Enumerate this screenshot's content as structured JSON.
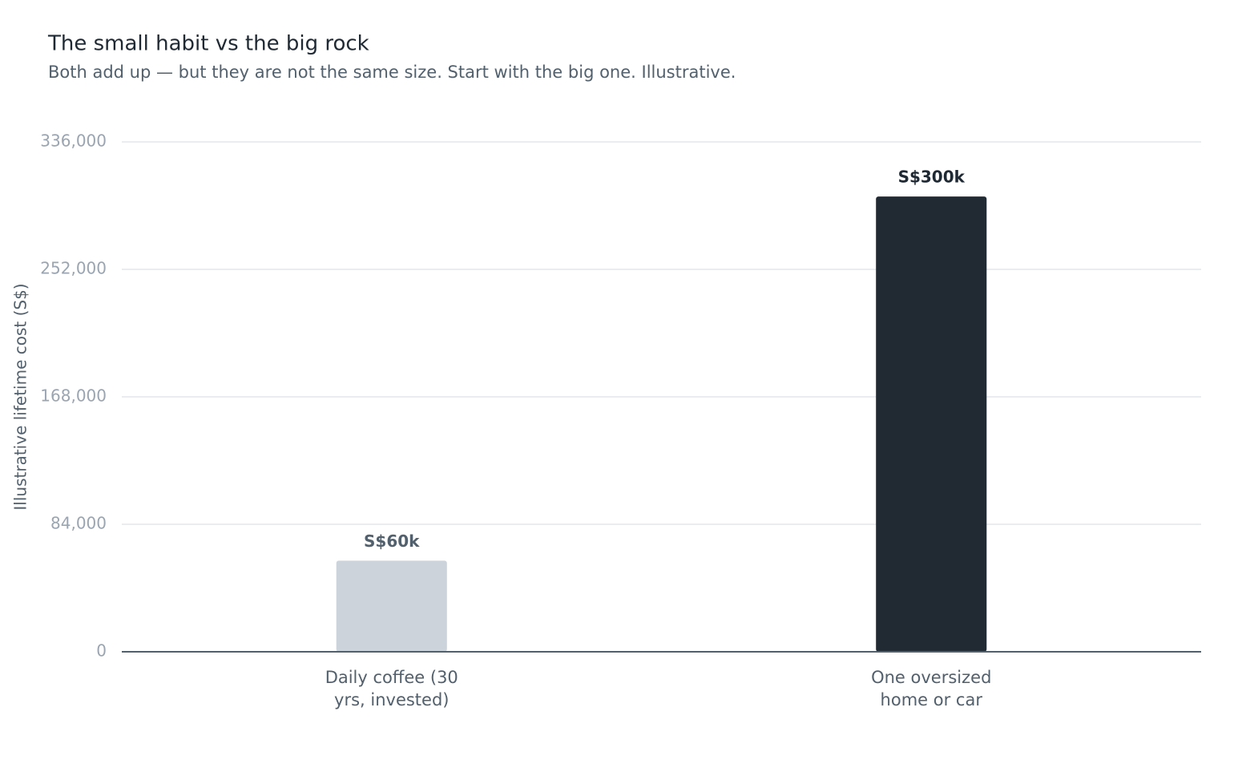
{
  "chart_data": {
    "type": "bar",
    "title": "The small habit vs the big rock",
    "subtitle": "Both add up — but they are not the same size. Start with the big one. Illustrative.",
    "y_label": "Illustrative lifetime cost (S$)",
    "categories": [
      "Daily coffee (30 yrs, invested)",
      "One oversized home or car"
    ],
    "values": [
      60000,
      300000
    ],
    "value_labels": [
      "S$60k",
      "S$300k"
    ],
    "colors": [
      "#cdd3da",
      "#212a33"
    ],
    "ylim": [
      0,
      336000
    ],
    "yticks": [
      0,
      {
        "value": 84000,
        "label": "84,000"
      },
      {
        "value": 168000,
        "label": "168,000"
      },
      {
        "value": 252000,
        "label": "252,000"
      },
      {
        "value": 336000,
        "label": "336,000"
      }
    ],
    "grid": true
  }
}
